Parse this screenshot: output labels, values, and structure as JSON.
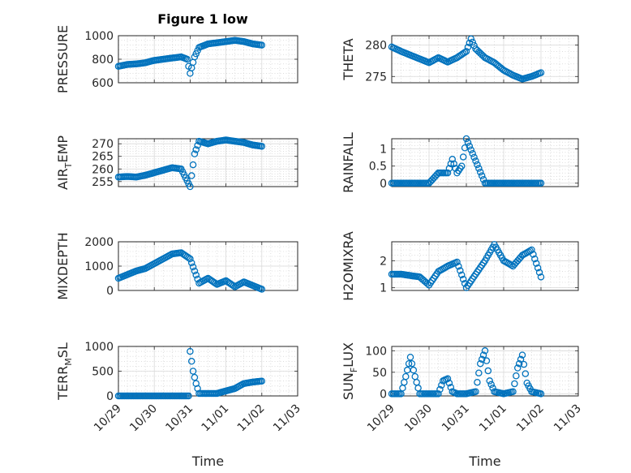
{
  "title": "Figure 1 low",
  "colors": {
    "marker": "#0072bd",
    "axes": "#262626",
    "grid": "#d9d9d9"
  },
  "chart_data": [
    {
      "type": "scatter",
      "ylabel": "PRESSURE",
      "ylabel_sub": "",
      "xlabel": "",
      "ylim": [
        600,
        1000
      ],
      "yticks": [
        "600",
        "800",
        "1000"
      ],
      "xticks": [],
      "marker": "circle",
      "x": [
        "10/29 00:00",
        "10/29 06:00",
        "10/29 12:00",
        "10/29 18:00",
        "10/30 00:00",
        "10/30 06:00",
        "10/30 12:00",
        "10/30 18:00",
        "10/30 22:00",
        "10/31 00:00",
        "10/31 03:00",
        "10/31 06:00",
        "10/31 12:00",
        "10/31 18:00",
        "11/01 00:00",
        "11/01 06:00",
        "11/01 12:00",
        "11/01 18:00",
        "11/02 00:00"
      ],
      "y": [
        740,
        755,
        760,
        770,
        790,
        800,
        810,
        820,
        800,
        680,
        820,
        900,
        930,
        940,
        950,
        960,
        950,
        930,
        920
      ]
    },
    {
      "type": "scatter",
      "ylabel": "THETA",
      "ylabel_sub": "",
      "xlabel": "",
      "ylim": [
        274,
        281.5
      ],
      "yticks": [
        "275",
        "280"
      ],
      "xticks": [],
      "marker": "circle",
      "x": [
        "10/29 00:00",
        "10/29 06:00",
        "10/29 12:00",
        "10/29 18:00",
        "10/30 00:00",
        "10/30 06:00",
        "10/30 12:00",
        "10/30 18:00",
        "10/31 00:00",
        "10/31 03:00",
        "10/31 06:00",
        "10/31 12:00",
        "10/31 18:00",
        "11/01 00:00",
        "11/01 06:00",
        "11/01 12:00",
        "11/01 18:00",
        "11/02 00:00"
      ],
      "y": [
        279.7,
        279,
        278.4,
        277.8,
        277.2,
        278,
        277.3,
        278,
        279,
        281,
        279.4,
        278,
        277.2,
        276,
        275.2,
        274.6,
        275,
        275.6
      ]
    },
    {
      "type": "scatter",
      "ylabel": "AIR",
      "ylabel_sub": "T",
      "ylabel_rest": "EMP",
      "xlabel": "",
      "ylim": [
        253,
        272
      ],
      "yticks": [
        "255",
        "260",
        "265",
        "270"
      ],
      "xticks": [],
      "marker": "circle",
      "x": [
        "10/29 00:00",
        "10/29 06:00",
        "10/29 12:00",
        "10/29 18:00",
        "10/30 00:00",
        "10/30 06:00",
        "10/30 12:00",
        "10/30 18:00",
        "10/31 00:00",
        "10/31 03:00",
        "10/31 06:00",
        "10/31 12:00",
        "10/31 18:00",
        "11/01 00:00",
        "11/01 06:00",
        "11/01 12:00",
        "11/01 18:00",
        "11/02 00:00"
      ],
      "y": [
        256.8,
        257,
        256.8,
        257.5,
        258.5,
        259.5,
        260.5,
        260,
        253,
        266,
        271,
        270,
        271,
        271.5,
        271,
        270.5,
        269.5,
        269
      ]
    },
    {
      "type": "scatter",
      "ylabel": "RAINFALL",
      "ylabel_sub": "",
      "xlabel": "",
      "ylim": [
        -0.1,
        1.3
      ],
      "yticks": [
        "0",
        "0.5",
        "1"
      ],
      "xticks": [],
      "marker": "circle",
      "x": [
        "10/29 00:00",
        "10/29 12:00",
        "10/30 00:00",
        "10/30 06:00",
        "10/30 12:00",
        "10/30 15:00",
        "10/30 18:00",
        "10/30 21:00",
        "10/31 00:00",
        "10/31 12:00",
        "11/01 00:00",
        "11/01 12:00",
        "11/02 00:00"
      ],
      "y": [
        0,
        0,
        0,
        0.3,
        0.3,
        0.7,
        0.3,
        0.5,
        1.3,
        0,
        0,
        0,
        0
      ]
    },
    {
      "type": "scatter",
      "ylabel": "MIXDEPTH",
      "ylabel_sub": "",
      "xlabel": "",
      "ylim": [
        0,
        2000
      ],
      "yticks": [
        "0",
        "1000",
        "2000"
      ],
      "xticks": [],
      "marker": "circle",
      "x": [
        "10/29 00:00",
        "10/29 06:00",
        "10/29 12:00",
        "10/29 18:00",
        "10/30 00:00",
        "10/30 06:00",
        "10/30 12:00",
        "10/30 18:00",
        "10/31 00:00",
        "10/31 06:00",
        "10/31 12:00",
        "10/31 18:00",
        "11/01 00:00",
        "11/01 06:00",
        "11/01 12:00",
        "11/01 18:00",
        "11/02 00:00"
      ],
      "y": [
        500,
        650,
        800,
        900,
        1100,
        1300,
        1500,
        1550,
        1300,
        300,
        500,
        250,
        400,
        150,
        350,
        200,
        50
      ]
    },
    {
      "type": "scatter",
      "ylabel": "H2OMIXRA",
      "ylabel_sub": "",
      "xlabel": "",
      "ylim": [
        0.9,
        2.7
      ],
      "yticks": [
        "1",
        "2"
      ],
      "xticks": [],
      "marker": "circle",
      "x": [
        "10/29 00:00",
        "10/29 06:00",
        "10/29 12:00",
        "10/29 18:00",
        "10/30 00:00",
        "10/30 06:00",
        "10/30 12:00",
        "10/30 18:00",
        "10/31 00:00",
        "10/31 06:00",
        "10/31 12:00",
        "10/31 18:00",
        "11/01 00:00",
        "11/01 06:00",
        "11/01 12:00",
        "11/01 18:00",
        "11/02 00:00"
      ],
      "y": [
        1.5,
        1.5,
        1.45,
        1.4,
        1.1,
        1.6,
        1.8,
        1.95,
        1.0,
        1.5,
        2.0,
        2.6,
        2.0,
        1.8,
        2.2,
        2.4,
        1.4
      ]
    },
    {
      "type": "scatter",
      "ylabel": "TERR",
      "ylabel_sub": "M",
      "ylabel_rest": "SL",
      "xlabel": "Time",
      "ylim": [
        0,
        1000
      ],
      "yticks": [
        "0",
        "500",
        "1000"
      ],
      "xticks": [
        "10/29",
        "10/30",
        "10/31",
        "11/01",
        "11/02",
        "11/03"
      ],
      "marker": "circle",
      "x": [
        "10/29 00:00",
        "10/29 12:00",
        "10/30 00:00",
        "10/30 12:00",
        "10/30 23:00",
        "10/31 00:00",
        "10/31 02:00",
        "10/31 04:00",
        "10/31 06:00",
        "10/31 12:00",
        "10/31 18:00",
        "11/01 00:00",
        "11/01 06:00",
        "11/01 12:00",
        "11/01 18:00",
        "11/02 00:00"
      ],
      "y": [
        0,
        0,
        0,
        0,
        0,
        900,
        500,
        250,
        50,
        50,
        50,
        100,
        150,
        250,
        280,
        300
      ]
    },
    {
      "type": "scatter",
      "ylabel": "SUN",
      "ylabel_sub": "F",
      "ylabel_rest": "LUX",
      "xlabel": "Time",
      "ylim": [
        -5,
        110
      ],
      "yticks": [
        "0",
        "50",
        "100"
      ],
      "xticks": [
        "10/29",
        "10/30",
        "10/31",
        "11/01",
        "11/02",
        "11/03"
      ],
      "marker": "circle",
      "x": [
        "10/29 00:00",
        "10/29 06:00",
        "10/29 09:00",
        "10/29 12:00",
        "10/29 15:00",
        "10/29 18:00",
        "10/30 00:00",
        "10/30 06:00",
        "10/30 09:00",
        "10/30 12:00",
        "10/30 15:00",
        "10/30 18:00",
        "10/31 00:00",
        "10/31 06:00",
        "10/31 09:00",
        "10/31 12:00",
        "10/31 15:00",
        "10/31 18:00",
        "11/01 00:00",
        "11/01 06:00",
        "11/01 09:00",
        "11/01 12:00",
        "11/01 15:00",
        "11/01 18:00",
        "11/02 00:00"
      ],
      "y": [
        0,
        0,
        40,
        85,
        40,
        0,
        0,
        0,
        30,
        35,
        5,
        0,
        0,
        5,
        70,
        100,
        30,
        5,
        0,
        5,
        60,
        90,
        25,
        5,
        0
      ]
    }
  ]
}
